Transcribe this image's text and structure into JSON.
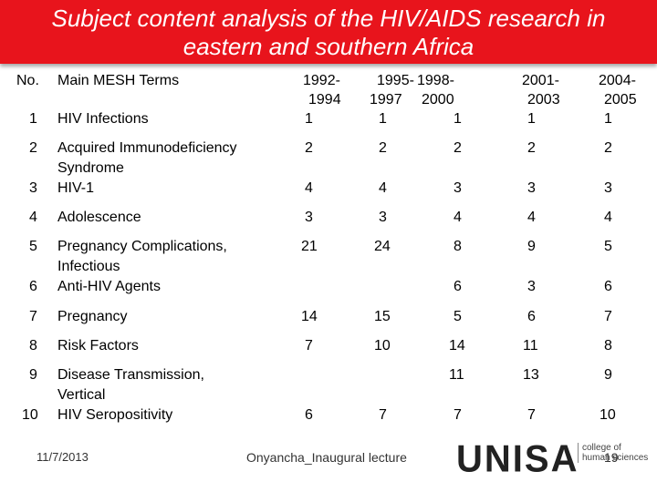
{
  "title": "Subject content analysis of the HIV/AIDS research in\neastern and southern Africa",
  "table": {
    "header": {
      "no": "No.",
      "term": "Main MESH Terms",
      "p1_top": "1992-",
      "p1_bot": "1994",
      "p2_top": "1995-",
      "p2_bot": "1997",
      "p3_top": "1998-",
      "p3_bot": "2000",
      "p4_top": "2001-",
      "p4_bot": "2003",
      "p5_top": "2004-",
      "p5_bot": "2005"
    },
    "rows": [
      {
        "no": "1",
        "term": "HIV Infections",
        "v": [
          "1",
          "1",
          "1",
          "1",
          "1"
        ]
      },
      {
        "no": "2",
        "term": "Acquired Immunodeficiency\nSyndrome",
        "v": [
          "2",
          "2",
          "2",
          "2",
          "2"
        ]
      },
      {
        "no": "3",
        "term": "HIV-1",
        "v": [
          "4",
          "4",
          "3",
          "3",
          "3"
        ]
      },
      {
        "no": "4",
        "term": "Adolescence",
        "v": [
          "3",
          "3",
          "4",
          "4",
          "4"
        ]
      },
      {
        "no": "5",
        "term": "Pregnancy Complications,\nInfectious",
        "v": [
          "21",
          "24",
          "8",
          "9",
          "5"
        ]
      },
      {
        "no": "6",
        "term": "Anti-HIV Agents",
        "v": [
          "",
          "",
          "6",
          "3",
          "6"
        ]
      },
      {
        "no": "7",
        "term": "Pregnancy",
        "v": [
          "14",
          "15",
          "5",
          "6",
          "7"
        ]
      },
      {
        "no": "8",
        "term": "Risk Factors",
        "v": [
          "7",
          "10",
          "14",
          "11",
          "8"
        ]
      },
      {
        "no": "9",
        "term": "Disease Transmission,\nVertical",
        "v": [
          "",
          "",
          "11",
          "13",
          "9"
        ]
      },
      {
        "no": "10",
        "term": "HIV Seropositivity",
        "v": [
          "6",
          "7",
          "7",
          "7",
          "10"
        ]
      }
    ]
  },
  "footer": {
    "date": "11/7/2013",
    "center": "Onyancha_Inaugural lecture",
    "logo": "UNISA",
    "logo_sub": "college of\nhuman sciences",
    "page": "19"
  },
  "colors": {
    "title_bg": "#e8141c",
    "title_text": "#ffffff"
  }
}
